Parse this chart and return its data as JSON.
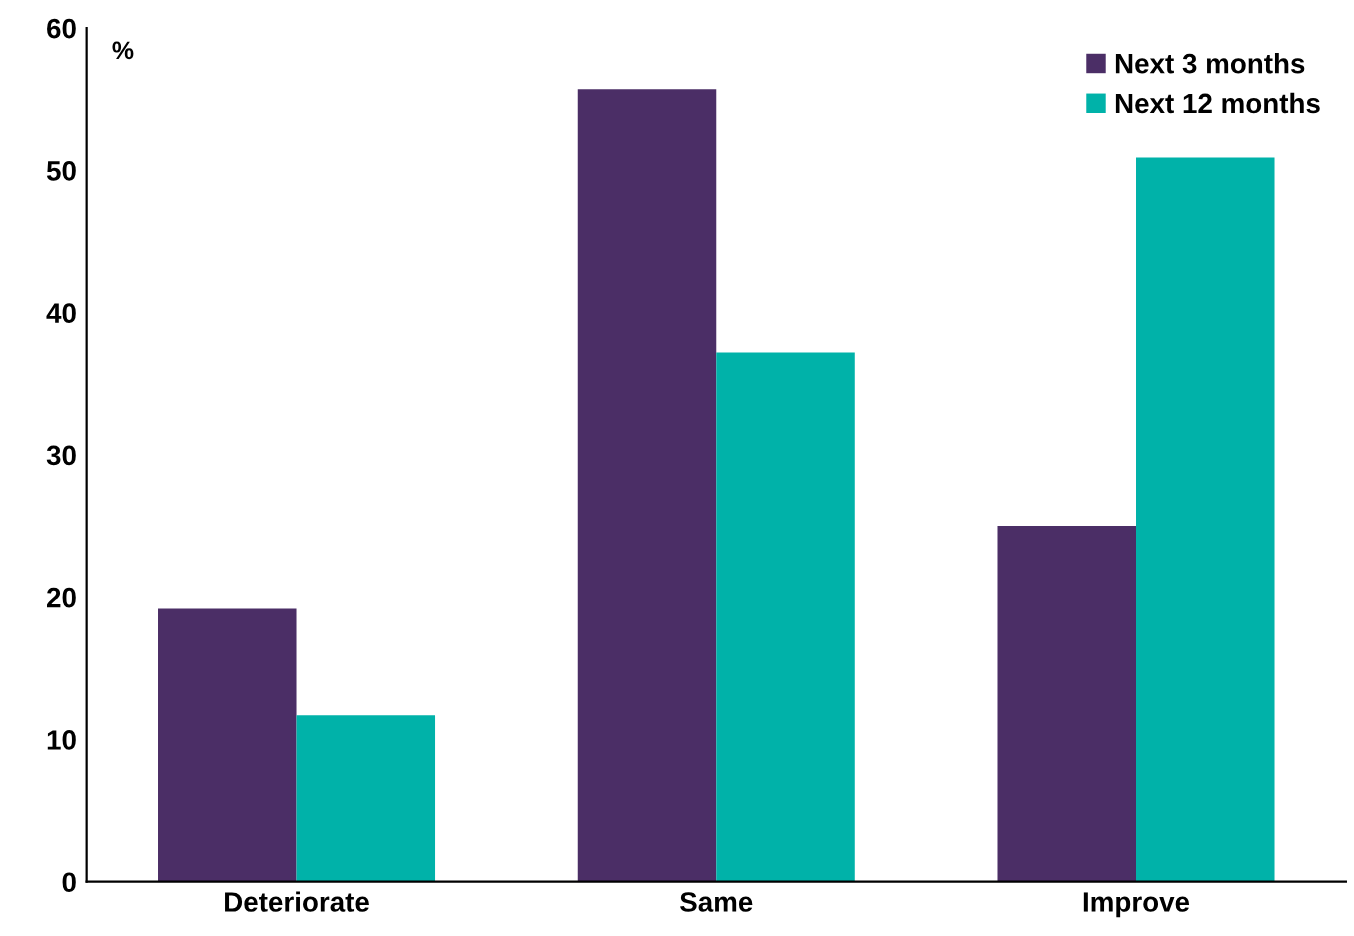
{
  "chart_data": {
    "type": "bar",
    "ylabel": "%",
    "categories": [
      "Deteriorate",
      "Same",
      "Improve"
    ],
    "series": [
      {
        "name": "Next 3 months",
        "color": "#4b2e66",
        "values": [
          19.2,
          55.7,
          25.0
        ]
      },
      {
        "name": "Next 12 months",
        "color": "#00b2a9",
        "values": [
          11.7,
          37.2,
          50.9
        ]
      }
    ],
    "ylim": [
      0,
      60
    ],
    "yticks": [
      0,
      10,
      20,
      30,
      40,
      50,
      60
    ],
    "grid": false,
    "legend": "top right"
  }
}
